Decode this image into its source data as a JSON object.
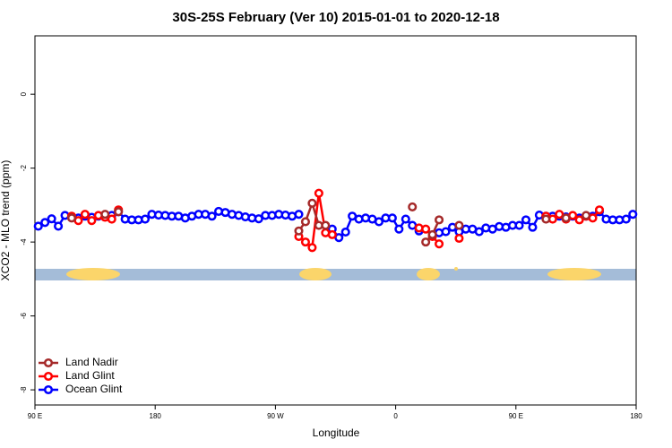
{
  "chart_data": {
    "type": "line",
    "title": "30S-25S February (Ver 10)   2015-01-01 to 2020-12-18",
    "x_label": "Longitude",
    "y_label": "XCO2 - MLO trend (ppm)",
    "xlim": [
      90,
      540
    ],
    "ylim": [
      -8.41,
      1.58
    ],
    "xticks": [
      {
        "value": 90,
        "label": "90 E"
      },
      180,
      {
        "value": 270,
        "label": "90 W"
      },
      {
        "value": 360,
        "label": "0"
      },
      {
        "value": 450,
        "label": "90 E"
      },
      {
        "value": 540,
        "label": "180"
      }
    ],
    "yticks": [
      0,
      -2,
      -4,
      -6,
      -8
    ],
    "legend": "bottom-left",
    "x": [
      92.5,
      97.5,
      102.5,
      107.5,
      112.5,
      117.5,
      122.5,
      127.5,
      132.5,
      137.5,
      142.5,
      147.5,
      152.5,
      157.5,
      162.5,
      167.5,
      172.5,
      177.5,
      182.5,
      187.5,
      192.5,
      197.5,
      202.5,
      207.5,
      212.5,
      217.5,
      222.5,
      227.5,
      232.5,
      237.5,
      242.5,
      247.5,
      252.5,
      257.5,
      262.5,
      267.5,
      272.5,
      277.5,
      282.5,
      287.5,
      292.5,
      297.5,
      302.5,
      307.5,
      312.5,
      317.5,
      322.5,
      327.5,
      332.5,
      337.5,
      342.5,
      347.5,
      352.5,
      357.5,
      362.5,
      367.5,
      372.5,
      377.5,
      382.5,
      387.5,
      392.5,
      397.5,
      402.5,
      407.5,
      412.5,
      417.5,
      422.5,
      427.5,
      432.5,
      437.5,
      442.5,
      447.5,
      452.5,
      457.5,
      462.5,
      467.5,
      472.5,
      477.5,
      482.5,
      487.5,
      492.5,
      497.5,
      502.5,
      507.5,
      512.5,
      517.5,
      522.5,
      527.5,
      532.5,
      537.5
    ],
    "series": [
      {
        "name": "Land Nadir",
        "color": "#a52a2a",
        "values": [
          null,
          null,
          null,
          null,
          null,
          -3.35,
          null,
          null,
          null,
          null,
          -3.25,
          null,
          -3.18,
          null,
          null,
          null,
          null,
          null,
          null,
          null,
          null,
          null,
          null,
          null,
          null,
          null,
          null,
          null,
          null,
          null,
          null,
          null,
          null,
          null,
          null,
          null,
          null,
          null,
          null,
          -3.7,
          -3.45,
          -2.95,
          -3.55,
          -3.55,
          null,
          null,
          null,
          null,
          null,
          null,
          null,
          null,
          null,
          null,
          null,
          null,
          -3.05,
          null,
          -4.0,
          -3.8,
          -3.4,
          null,
          null,
          -3.55,
          null,
          null,
          null,
          null,
          null,
          null,
          null,
          null,
          null,
          null,
          null,
          null,
          -3.38,
          null,
          null,
          -3.35,
          null,
          null,
          -3.28,
          null,
          null,
          null,
          null,
          null,
          null,
          null
        ]
      },
      {
        "name": "Land Glint",
        "color": "#ff0000",
        "values": [
          null,
          null,
          null,
          null,
          null,
          -3.3,
          -3.42,
          -3.25,
          -3.42,
          -3.28,
          -3.33,
          -3.38,
          -3.13,
          null,
          null,
          null,
          null,
          null,
          null,
          null,
          null,
          null,
          null,
          null,
          null,
          null,
          null,
          null,
          null,
          null,
          null,
          null,
          null,
          null,
          null,
          null,
          null,
          null,
          null,
          -3.85,
          -4.0,
          -4.15,
          -2.68,
          -3.75,
          -3.8,
          null,
          null,
          null,
          null,
          null,
          null,
          null,
          null,
          null,
          null,
          null,
          null,
          -3.62,
          -3.65,
          -3.85,
          -4.05,
          null,
          null,
          -3.9,
          null,
          null,
          null,
          null,
          null,
          null,
          null,
          null,
          null,
          null,
          null,
          null,
          -3.3,
          -3.38,
          -3.25,
          -3.38,
          -3.28,
          -3.4,
          -3.3,
          -3.35,
          -3.13,
          null,
          null,
          null,
          null,
          null
        ]
      },
      {
        "name": "Ocean Glint",
        "color": "#0000ff",
        "values": [
          -3.57,
          -3.47,
          -3.37,
          -3.57,
          -3.28,
          -3.32,
          -3.35,
          -3.3,
          -3.33,
          -3.3,
          -3.3,
          -3.28,
          -3.18,
          -3.38,
          -3.4,
          -3.4,
          -3.38,
          -3.25,
          -3.27,
          -3.28,
          -3.3,
          -3.3,
          -3.35,
          -3.3,
          -3.25,
          -3.25,
          -3.3,
          -3.17,
          -3.2,
          -3.25,
          -3.28,
          -3.32,
          -3.35,
          -3.37,
          -3.28,
          -3.28,
          -3.25,
          -3.27,
          -3.3,
          -3.25,
          null,
          null,
          null,
          null,
          -3.65,
          -3.88,
          -3.73,
          -3.3,
          -3.38,
          -3.35,
          -3.38,
          -3.45,
          -3.35,
          -3.35,
          -3.65,
          -3.38,
          -3.55,
          -3.7,
          null,
          null,
          -3.75,
          -3.72,
          -3.6,
          -3.72,
          -3.65,
          -3.65,
          -3.72,
          -3.62,
          -3.65,
          -3.58,
          -3.6,
          -3.55,
          -3.55,
          -3.4,
          -3.6,
          -3.27,
          -3.3,
          -3.3,
          -3.3,
          -3.32,
          -3.3,
          -3.35,
          -3.3,
          -3.3,
          -3.18,
          -3.38,
          -3.4,
          -3.4,
          -3.38,
          -3.25
        ]
      }
    ]
  }
}
